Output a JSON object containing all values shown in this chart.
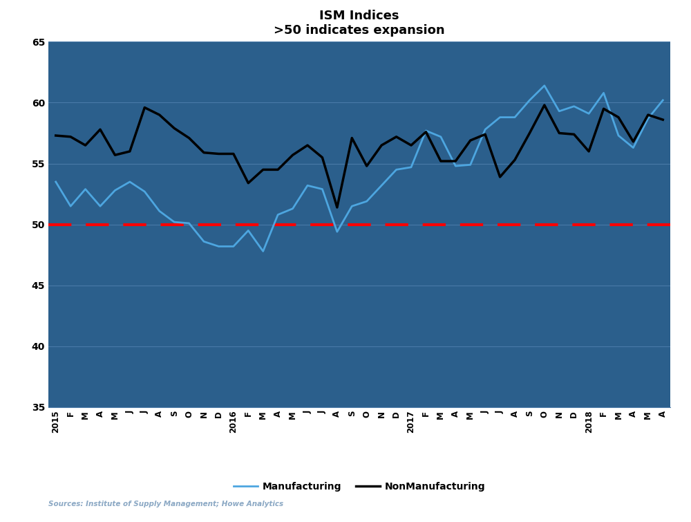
{
  "title": "ISM Indices",
  "subtitle": ">50 indicates expansion",
  "source_text": "Sources: Institute of Supply Management; Howe Analytics",
  "fig_bg_color": "#FFFFFF",
  "bg_color": "#2B5F8C",
  "plot_bg_color": "#2B5F8C",
  "grid_color": "#4A7AA8",
  "line_color_manufacturing": "#4DA6E0",
  "line_color_nonmanufacturing": "#000000",
  "ref_line_color": "#FF0000",
  "ref_line_value": 50,
  "ylim": [
    35,
    65
  ],
  "yticks": [
    35,
    40,
    45,
    50,
    55,
    60,
    65
  ],
  "tick_labels": [
    "2015",
    "F",
    "M",
    "A",
    "M",
    "J",
    "J",
    "A",
    "S",
    "O",
    "N",
    "D",
    "2016",
    "F",
    "M",
    "A",
    "M",
    "J",
    "J",
    "A",
    "S",
    "O",
    "N",
    "D",
    "2017",
    "F",
    "M",
    "A",
    "M",
    "J",
    "J",
    "A",
    "S",
    "O",
    "N",
    "D",
    "2018",
    "F",
    "M",
    "A",
    "M",
    "A"
  ],
  "manufacturing": [
    53.5,
    51.5,
    52.9,
    51.5,
    52.8,
    53.5,
    52.7,
    51.1,
    50.2,
    50.1,
    48.6,
    48.2,
    48.2,
    49.5,
    47.8,
    50.8,
    51.3,
    53.2,
    52.9,
    49.4,
    51.5,
    51.9,
    53.2,
    54.5,
    54.7,
    57.7,
    57.2,
    54.8,
    54.9,
    57.8,
    58.8,
    58.8,
    60.2,
    61.4,
    59.3,
    59.7,
    59.1,
    60.8,
    57.3,
    56.3,
    58.7,
    60.2
  ],
  "nonmanufacturing": [
    57.3,
    57.2,
    56.5,
    57.8,
    55.7,
    56.0,
    59.6,
    59.0,
    57.9,
    57.1,
    55.9,
    55.8,
    55.8,
    53.4,
    54.5,
    54.5,
    55.7,
    56.5,
    55.5,
    51.4,
    57.1,
    54.8,
    56.5,
    57.2,
    56.5,
    57.6,
    55.2,
    55.2,
    56.9,
    57.4,
    53.9,
    55.3,
    57.5,
    59.8,
    57.5,
    57.4,
    56.0,
    59.5,
    58.8,
    56.8,
    59.0,
    58.6
  ],
  "legend_manufacturing": "Manufacturing",
  "legend_nonmanufacturing": "NonManufacturing",
  "title_fontsize": 13,
  "subtitle_fontsize": 11,
  "tick_fontsize": 8.5,
  "ytick_fontsize": 10,
  "text_color": "#000000",
  "ytick_color": "#000000",
  "source_color": "#8BA8C4"
}
